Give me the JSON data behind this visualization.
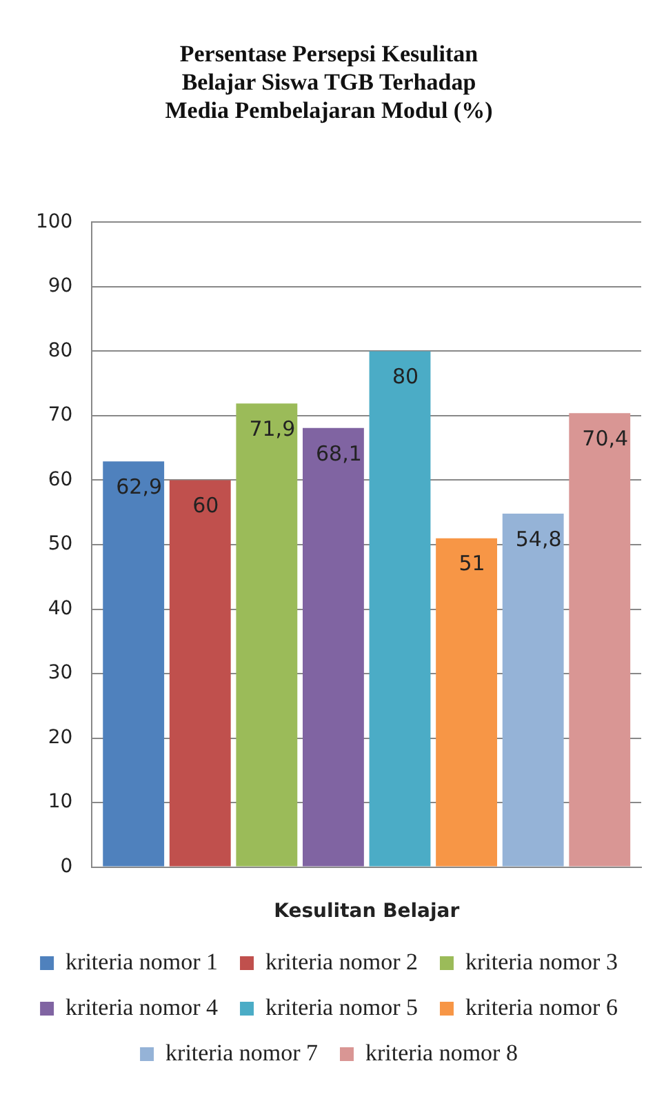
{
  "chart_data": {
    "type": "bar",
    "title": "Persentase Persepsi Kesulitan Belajar Siswa TGB Terhadap Media Pembelajaran Modul (%)",
    "xlabel": "Kesulitan Belajar",
    "categories": [
      null
    ],
    "series": [
      {
        "name": "kriteria nomor 1",
        "color": "#4f81bd",
        "values": [
          62.9
        ],
        "value_labels": [
          "62,9"
        ]
      },
      {
        "name": "kriteria nomor 2",
        "color": "#c0504d",
        "values": [
          60
        ],
        "value_labels": [
          "60"
        ]
      },
      {
        "name": "kriteria nomor 3",
        "color": "#9bbb59",
        "values": [
          71.9
        ],
        "value_labels": [
          "71,9"
        ]
      },
      {
        "name": "kriteria nomor 4",
        "color": "#8064a2",
        "values": [
          68.1
        ],
        "value_labels": [
          "68,1"
        ]
      },
      {
        "name": "kriteria nomor 5",
        "color": "#4bacc6",
        "values": [
          80
        ],
        "value_labels": [
          "80"
        ]
      },
      {
        "name": "kriteria nomor 6",
        "color": "#f79646",
        "values": [
          51
        ],
        "value_labels": [
          "51"
        ]
      },
      {
        "name": "kriteria nomor 7",
        "color": "#95b3d7",
        "values": [
          54.8
        ],
        "value_labels": [
          "54,8"
        ]
      },
      {
        "name": "kriteria nomor 8",
        "color": "#d99694",
        "values": [
          70.4
        ],
        "value_labels": [
          "70,4"
        ]
      }
    ],
    "ylim": [
      0,
      100
    ],
    "yticks": [
      0,
      10,
      20,
      30,
      40,
      50,
      60,
      70,
      80,
      90,
      100
    ],
    "grid": "y",
    "legend": "bottom"
  }
}
